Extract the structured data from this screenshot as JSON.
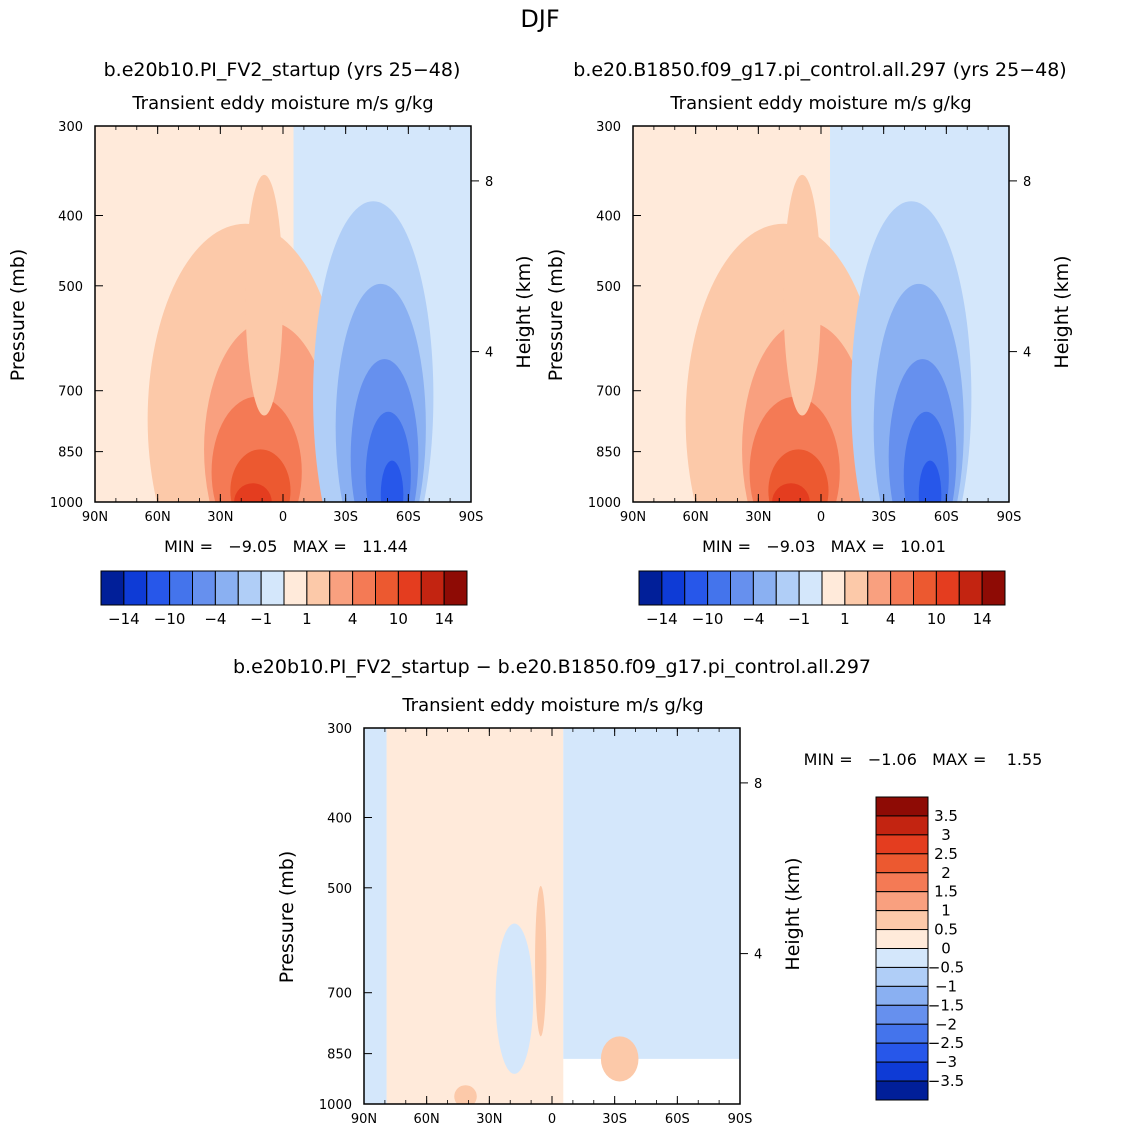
{
  "title": "DJF",
  "colors": {
    "pos": [
      "#ffeada",
      "#fcc9a9",
      "#f9a07f",
      "#f47a55",
      "#ec5930",
      "#e43d1f",
      "#c32411",
      "#8e0b05"
    ],
    "neg": [
      "#d4e7fb",
      "#b0cef7",
      "#8ab0f2",
      "#6690ee",
      "#4474ec",
      "#2757ea",
      "#0e3bd6",
      "#011f99"
    ]
  },
  "chart_data": [
    {
      "type": "heatmap",
      "title": "b.e20b10.PI_FV2_startup (yrs 25−48)",
      "subtitle": "Transient eddy moisture m/s g/kg",
      "xlabel": "",
      "ylabel": "Pressure (mb)",
      "ylabel_right": "Height (km)",
      "x_ticks": [
        "90N",
        "60N",
        "30N",
        "0",
        "30S",
        "60S",
        "90S"
      ],
      "y_ticks": [
        "300",
        "400",
        "500",
        "700",
        "850",
        "1000"
      ],
      "y_ticks_right": [
        "8",
        "4"
      ],
      "ylim": [
        1000,
        300
      ],
      "stats": "MIN =   −9.05   MAX =   11.44",
      "min": -9.05,
      "max": 11.44,
      "colorbar_labels": [
        "−14",
        "−10",
        "−4",
        "−1",
        "1",
        "4",
        "10",
        "14"
      ]
    },
    {
      "type": "heatmap",
      "title": "b.e20.B1850.f09_g17.pi_control.all.297 (yrs 25−48)",
      "subtitle": "Transient eddy moisture m/s g/kg",
      "xlabel": "",
      "ylabel": "Pressure (mb)",
      "ylabel_right": "Height (km)",
      "x_ticks": [
        "90N",
        "60N",
        "30N",
        "0",
        "30S",
        "60S",
        "90S"
      ],
      "y_ticks": [
        "300",
        "400",
        "500",
        "700",
        "850",
        "1000"
      ],
      "y_ticks_right": [
        "8",
        "4"
      ],
      "ylim": [
        1000,
        300
      ],
      "stats": "MIN =   −9.03   MAX =   10.01",
      "min": -9.03,
      "max": 10.01,
      "colorbar_labels": [
        "−14",
        "−10",
        "−4",
        "−1",
        "1",
        "4",
        "10",
        "14"
      ]
    },
    {
      "type": "heatmap",
      "title": "b.e20b10.PI_FV2_startup − b.e20.B1850.f09_g17.pi_control.all.297",
      "subtitle": "Transient eddy moisture m/s g/kg",
      "xlabel": "",
      "ylabel": "Pressure (mb)",
      "ylabel_right": "Height (km)",
      "x_ticks": [
        "90N",
        "60N",
        "30N",
        "0",
        "30S",
        "60S",
        "90S"
      ],
      "y_ticks": [
        "300",
        "400",
        "500",
        "700",
        "850",
        "1000"
      ],
      "y_ticks_right": [
        "8",
        "4"
      ],
      "ylim": [
        1000,
        300
      ],
      "stats": "MIN =   −1.06   MAX =    1.55",
      "min": -1.06,
      "max": 1.55,
      "colorbar_labels": [
        "3.5",
        "3",
        "2.5",
        "2",
        "1.5",
        "1",
        "0.5",
        "0",
        "−0.5",
        "−1",
        "−1.5",
        "−2",
        "−2.5",
        "−3",
        "−3.5"
      ]
    }
  ]
}
